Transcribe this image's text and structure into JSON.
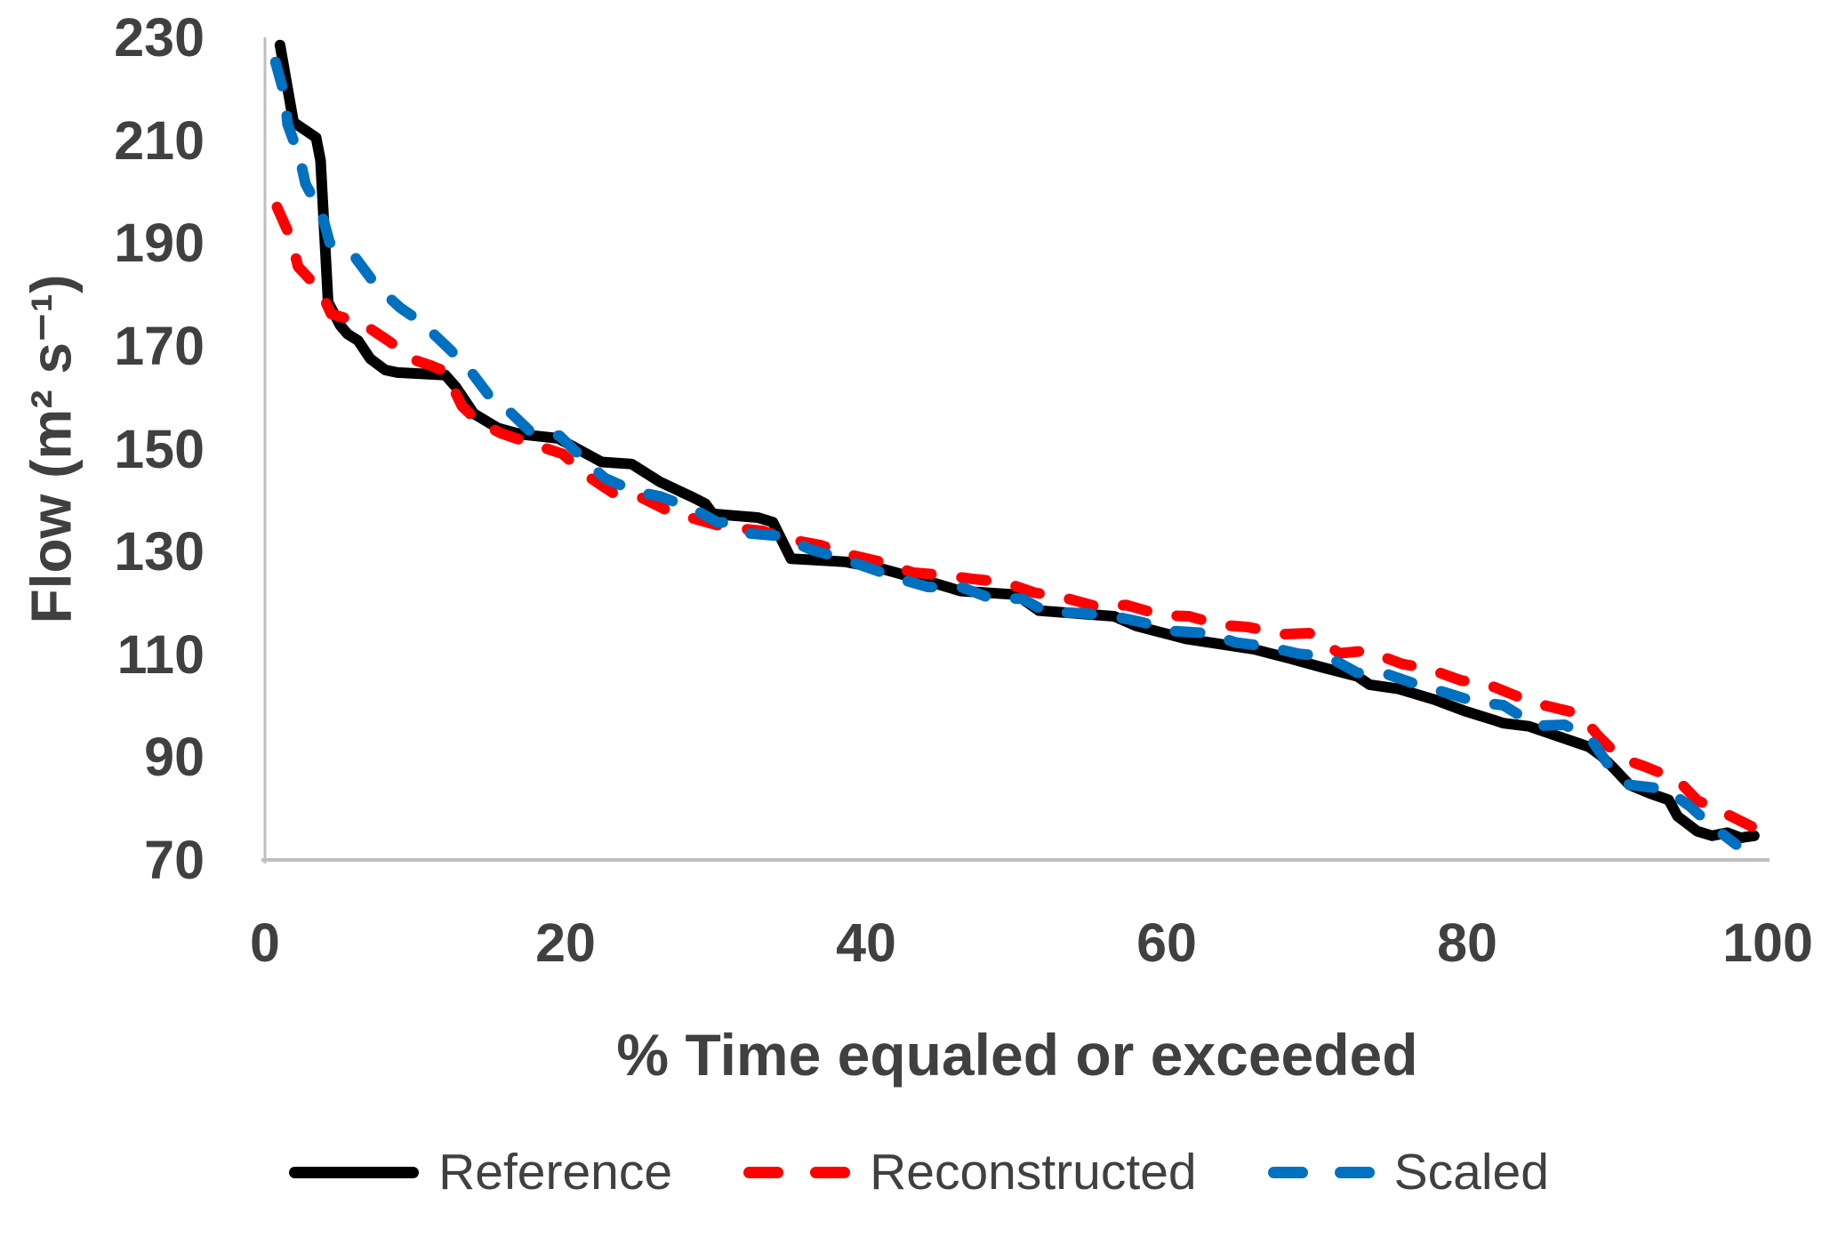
{
  "colors": {
    "text": "#404040",
    "axis_line": "#BFBFBF",
    "background": "#FFFFFF",
    "reference": "#000000",
    "reconstructed": "#FF0000",
    "scaled": "#0070C0"
  },
  "chart_data": {
    "type": "line",
    "title": "",
    "xlabel": "% Time equaled or exceeded",
    "ylabel": "Flow (m² s⁻¹)",
    "xlim": [
      0,
      100
    ],
    "ylim": [
      70,
      230
    ],
    "x_ticks": [
      0,
      20,
      40,
      60,
      80,
      100
    ],
    "y_ticks": [
      70,
      90,
      110,
      130,
      150,
      170,
      190,
      210,
      230
    ],
    "grid": false,
    "legend_position": "bottom",
    "series": [
      {
        "name": "Reference",
        "color": "#000000",
        "style": "solid",
        "points": [
          [
            1,
            228.5
          ],
          [
            1.9,
            213.5
          ],
          [
            3.4,
            210.5
          ],
          [
            3.7,
            206
          ],
          [
            4.2,
            178.5
          ],
          [
            5,
            174
          ],
          [
            5.5,
            172.3
          ],
          [
            6.2,
            171
          ],
          [
            7,
            167.5
          ],
          [
            8,
            165.3
          ],
          [
            8.8,
            164.8
          ],
          [
            12,
            164.3
          ],
          [
            12.7,
            162
          ],
          [
            13.9,
            156.8
          ],
          [
            15.5,
            154
          ],
          [
            17,
            152.8
          ],
          [
            19.5,
            152
          ],
          [
            22.4,
            147.4
          ],
          [
            24.4,
            147
          ],
          [
            26.3,
            143.5
          ],
          [
            28.5,
            140.5
          ],
          [
            29.3,
            139.3
          ],
          [
            29.8,
            137.3
          ],
          [
            32.8,
            136.6
          ],
          [
            33.8,
            135.7
          ],
          [
            35,
            128.6
          ],
          [
            38.6,
            128
          ],
          [
            41.1,
            126.6
          ],
          [
            44.7,
            123.7
          ],
          [
            46.3,
            122.3
          ],
          [
            50,
            121.6
          ],
          [
            51.5,
            118.5
          ],
          [
            56.5,
            117.4
          ],
          [
            58,
            115.5
          ],
          [
            61.3,
            113
          ],
          [
            65.8,
            111
          ],
          [
            68.2,
            109.2
          ],
          [
            70.3,
            107.5
          ],
          [
            72.7,
            105.7
          ],
          [
            73.5,
            104.1
          ],
          [
            75.4,
            103.3
          ],
          [
            77.8,
            101.2
          ],
          [
            79.8,
            99
          ],
          [
            81.8,
            97.2
          ],
          [
            82.4,
            96.6
          ],
          [
            84.1,
            96
          ],
          [
            86.3,
            93.8
          ],
          [
            88.1,
            92
          ],
          [
            88.9,
            90.3
          ],
          [
            89.7,
            88
          ],
          [
            90.8,
            84.6
          ],
          [
            92.2,
            82.9
          ],
          [
            93.4,
            81.7
          ],
          [
            94,
            78.5
          ],
          [
            95.3,
            75.6
          ],
          [
            96.3,
            74.7
          ],
          [
            97.3,
            75.3
          ],
          [
            98.2,
            74.3
          ],
          [
            99.1,
            74.7
          ]
        ]
      },
      {
        "name": "Reconstructed",
        "color": "#FF0000",
        "style": "dashed",
        "points": [
          [
            0.8,
            197
          ],
          [
            1.7,
            191.1
          ],
          [
            2.2,
            185.4
          ],
          [
            3.7,
            180.7
          ],
          [
            4.4,
            176.2
          ],
          [
            6.4,
            174.5
          ],
          [
            8.2,
            171
          ],
          [
            10,
            167.2
          ],
          [
            11,
            166.2
          ],
          [
            12,
            165
          ],
          [
            13.1,
            158.3
          ],
          [
            14.1,
            155.5
          ],
          [
            15.7,
            153
          ],
          [
            17.9,
            150.8
          ],
          [
            19.8,
            149
          ],
          [
            21.4,
            144.8
          ],
          [
            23.2,
            141.3
          ],
          [
            25.1,
            140.4
          ],
          [
            26.9,
            137.8
          ],
          [
            28.9,
            136.1
          ],
          [
            30.5,
            134.8
          ],
          [
            33.1,
            134
          ],
          [
            35,
            132.3
          ],
          [
            37,
            131.2
          ],
          [
            39.2,
            129.2
          ],
          [
            41.1,
            127.9
          ],
          [
            43.1,
            125.9
          ],
          [
            45.1,
            125.4
          ],
          [
            47,
            124.7
          ],
          [
            49.2,
            124
          ],
          [
            51.2,
            122
          ],
          [
            53.2,
            121
          ],
          [
            55.6,
            119.1
          ],
          [
            57.3,
            119.6
          ],
          [
            59.7,
            117.6
          ],
          [
            61.5,
            117.4
          ],
          [
            63.6,
            115.7
          ],
          [
            65.4,
            115.3
          ],
          [
            67.8,
            113.9
          ],
          [
            69.5,
            114.1
          ],
          [
            71.5,
            110.2
          ],
          [
            73.3,
            110.7
          ],
          [
            75.7,
            108.1
          ],
          [
            77.4,
            107.2
          ],
          [
            79.6,
            104.9
          ],
          [
            81.4,
            104.1
          ],
          [
            83.6,
            101.5
          ],
          [
            85.1,
            100.1
          ],
          [
            87.5,
            98.4
          ],
          [
            88.7,
            94.2
          ],
          [
            90.2,
            89.8
          ],
          [
            91.8,
            88.2
          ],
          [
            94,
            85.6
          ],
          [
            95.3,
            81.6
          ],
          [
            97,
            79.3
          ],
          [
            99,
            76.4
          ]
        ]
      },
      {
        "name": "Scaled",
        "color": "#0070C0",
        "style": "dashed",
        "points": [
          [
            0.7,
            225.2
          ],
          [
            1.3,
            218.8
          ],
          [
            1.5,
            213.1
          ],
          [
            2.3,
            206.7
          ],
          [
            2.7,
            201.5
          ],
          [
            3.8,
            195.5
          ],
          [
            4.3,
            190.1
          ],
          [
            6,
            187.2
          ],
          [
            7.2,
            182.5
          ],
          [
            8.4,
            179
          ],
          [
            9,
            177.4
          ],
          [
            10.4,
            174.6
          ],
          [
            12.4,
            169
          ],
          [
            13.7,
            165
          ],
          [
            15.1,
            159.6
          ],
          [
            16.1,
            157.7
          ],
          [
            17.7,
            153.2
          ],
          [
            19.6,
            152.5
          ],
          [
            21.2,
            148
          ],
          [
            22.6,
            144.3
          ],
          [
            24.6,
            141.7
          ],
          [
            26.3,
            140.7
          ],
          [
            28.5,
            138.3
          ],
          [
            30.1,
            135.7
          ],
          [
            30.9,
            135.6
          ],
          [
            32.3,
            133.5
          ],
          [
            34.3,
            133
          ],
          [
            36.3,
            130.4
          ],
          [
            38.3,
            128.7
          ],
          [
            40.4,
            126.6
          ],
          [
            42.1,
            124.8
          ],
          [
            44.1,
            123.1
          ],
          [
            46.4,
            123
          ],
          [
            48.2,
            121
          ],
          [
            50.4,
            120.8
          ],
          [
            52,
            118.2
          ],
          [
            54.4,
            118
          ],
          [
            56.5,
            117.4
          ],
          [
            58.4,
            116.2
          ],
          [
            60.5,
            114.5
          ],
          [
            62.7,
            114.1
          ],
          [
            64.6,
            112.3
          ],
          [
            66.7,
            111.5
          ],
          [
            68.8,
            110.1
          ],
          [
            70.7,
            109.6
          ],
          [
            72.7,
            106.4
          ],
          [
            74.5,
            106.3
          ],
          [
            76.6,
            104.2
          ],
          [
            78.4,
            102.7
          ],
          [
            80.6,
            100.7
          ],
          [
            82.4,
            100.1
          ],
          [
            84.6,
            96.1
          ],
          [
            86.5,
            96.3
          ],
          [
            88.3,
            93.2
          ],
          [
            89.5,
            88.1
          ],
          [
            90.8,
            84.6
          ],
          [
            93.2,
            83.8
          ],
          [
            94.8,
            80.5
          ],
          [
            96.2,
            76.8
          ],
          [
            97.9,
            73
          ]
        ]
      }
    ]
  },
  "legend": {
    "items": [
      "Reference",
      "Reconstructed",
      "Scaled"
    ]
  }
}
